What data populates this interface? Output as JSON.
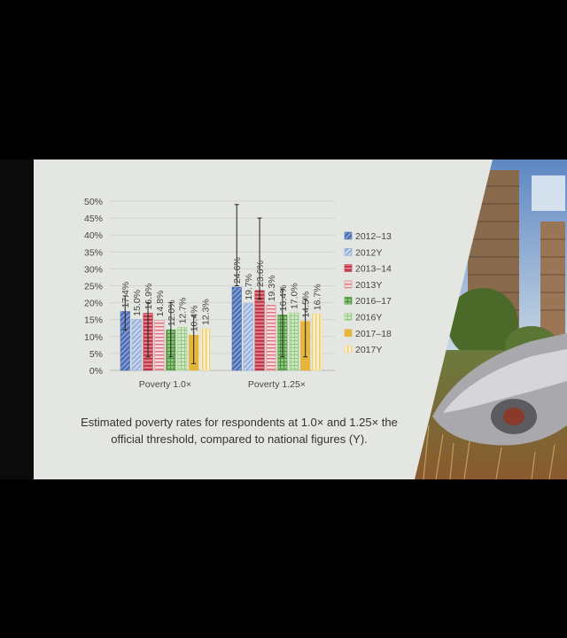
{
  "slide": {
    "caption": "Estimated poverty rates for respondents at 1.0× and 1.25× the official threshold, compared to national figures (Y).",
    "background_color": "#e4e7e1",
    "photo_description_icon": "city-ruins-photo"
  },
  "chart_data": {
    "type": "bar",
    "categories": [
      "Poverty 1.0×",
      "Poverty 1.25×"
    ],
    "series": [
      {
        "name": "2012–13",
        "values": [
          17.4,
          24.6
        ],
        "color": "#4a6fb5",
        "pattern": "diagonal",
        "error": [
          [
            12,
            22
          ],
          [
            25,
            49
          ]
        ]
      },
      {
        "name": "2012Y",
        "values": [
          15.0,
          19.7
        ],
        "color": "#8fa8d6",
        "pattern": "diagonal-light",
        "error": null
      },
      {
        "name": "2013–14",
        "values": [
          16.9,
          23.6
        ],
        "color": "#c0394a",
        "pattern": "horizontal",
        "error": [
          [
            4,
            20
          ],
          [
            21,
            45
          ]
        ]
      },
      {
        "name": "2013Y",
        "values": [
          14.8,
          19.3
        ],
        "color": "#e08a91",
        "pattern": "horizontal-light",
        "error": null
      },
      {
        "name": "2016–17",
        "values": [
          12.0,
          16.4
        ],
        "color": "#5aa04a",
        "pattern": "grid",
        "error": [
          [
            4,
            20
          ],
          [
            4,
            24
          ]
        ]
      },
      {
        "name": "2016Y",
        "values": [
          12.7,
          17.0
        ],
        "color": "#9fd08a",
        "pattern": "grid-light",
        "error": null
      },
      {
        "name": "2017–18",
        "values": [
          10.4,
          14.5
        ],
        "color": "#e0b43a",
        "pattern": "solid",
        "error": [
          [
            2,
            16
          ],
          [
            4,
            21
          ]
        ]
      },
      {
        "name": "2017Y",
        "values": [
          12.3,
          16.7
        ],
        "color": "#f0d98c",
        "pattern": "vertical",
        "error": null
      }
    ],
    "data_labels": [
      [
        "17.4%",
        "15.0%",
        "16.9%",
        "14.8%",
        "12.0%",
        "12.7%",
        "10.4%",
        "12.3%"
      ],
      [
        "24.6%",
        "19.7%",
        "23.6%",
        "19.3%",
        "16.4%",
        "17.0%",
        "14.5%",
        "16.7%"
      ]
    ],
    "y_ticks": [
      "0%",
      "5%",
      "10%",
      "15%",
      "20%",
      "25%",
      "30%",
      "35%",
      "40%",
      "45%",
      "50%"
    ],
    "ylim": [
      0,
      50
    ],
    "grid": true,
    "legend_position": "right"
  }
}
